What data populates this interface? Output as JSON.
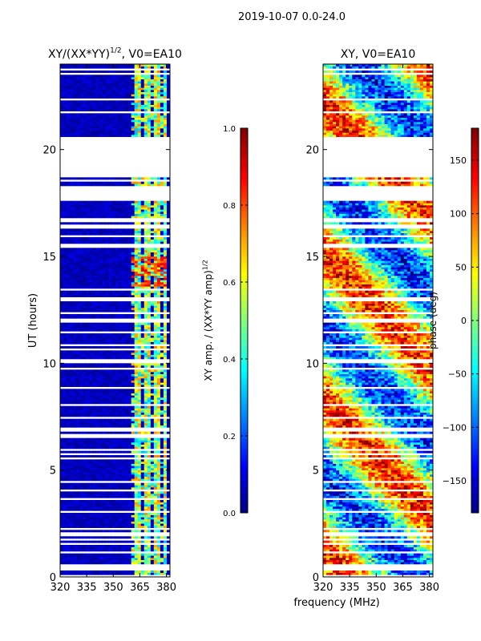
{
  "suptitle": "2019-10-07 0.0-24.0",
  "chart_data": [
    {
      "type": "heatmap",
      "title": "XY/(XX*YY)^1/2, V0=EA10",
      "title_main": "XY/(XX*YY)",
      "title_sup": "1/2",
      "title_tail": ", V0=EA10",
      "xlabel": "",
      "ylabel": "UT (hours)",
      "xlim": [
        320,
        382
      ],
      "ylim": [
        0,
        24
      ],
      "xticks": [
        320,
        335,
        350,
        365,
        380
      ],
      "yticks": [
        0,
        5,
        10,
        15,
        20
      ],
      "value": "normalized XY amplitude",
      "colorbar": {
        "label": "XY amp. / (XX*YY amp)^1/2",
        "label_main": "XY amp. / (XX*YY amp)",
        "label_sup": "1/2",
        "range": [
          0.0,
          1.0
        ],
        "ticks": [
          "0.0",
          "0.2",
          "0.4",
          "0.6",
          "0.8",
          "1.0"
        ],
        "colormap": "jet"
      }
    },
    {
      "type": "heatmap",
      "title": "XY, V0=EA10",
      "xlabel": "frequency (MHz)",
      "ylabel": "",
      "xlim": [
        320,
        382
      ],
      "ylim": [
        0,
        24
      ],
      "xticks": [
        320,
        335,
        350,
        365,
        380
      ],
      "yticks": [
        0,
        5,
        10,
        15,
        20
      ],
      "value": "XY phase",
      "colorbar": {
        "label": "phase (deg)",
        "range": [
          -180,
          180
        ],
        "ticks": [
          "-150",
          "-100",
          "-50",
          "0",
          "50",
          "100",
          "150"
        ],
        "colormap": "jet"
      }
    }
  ]
}
